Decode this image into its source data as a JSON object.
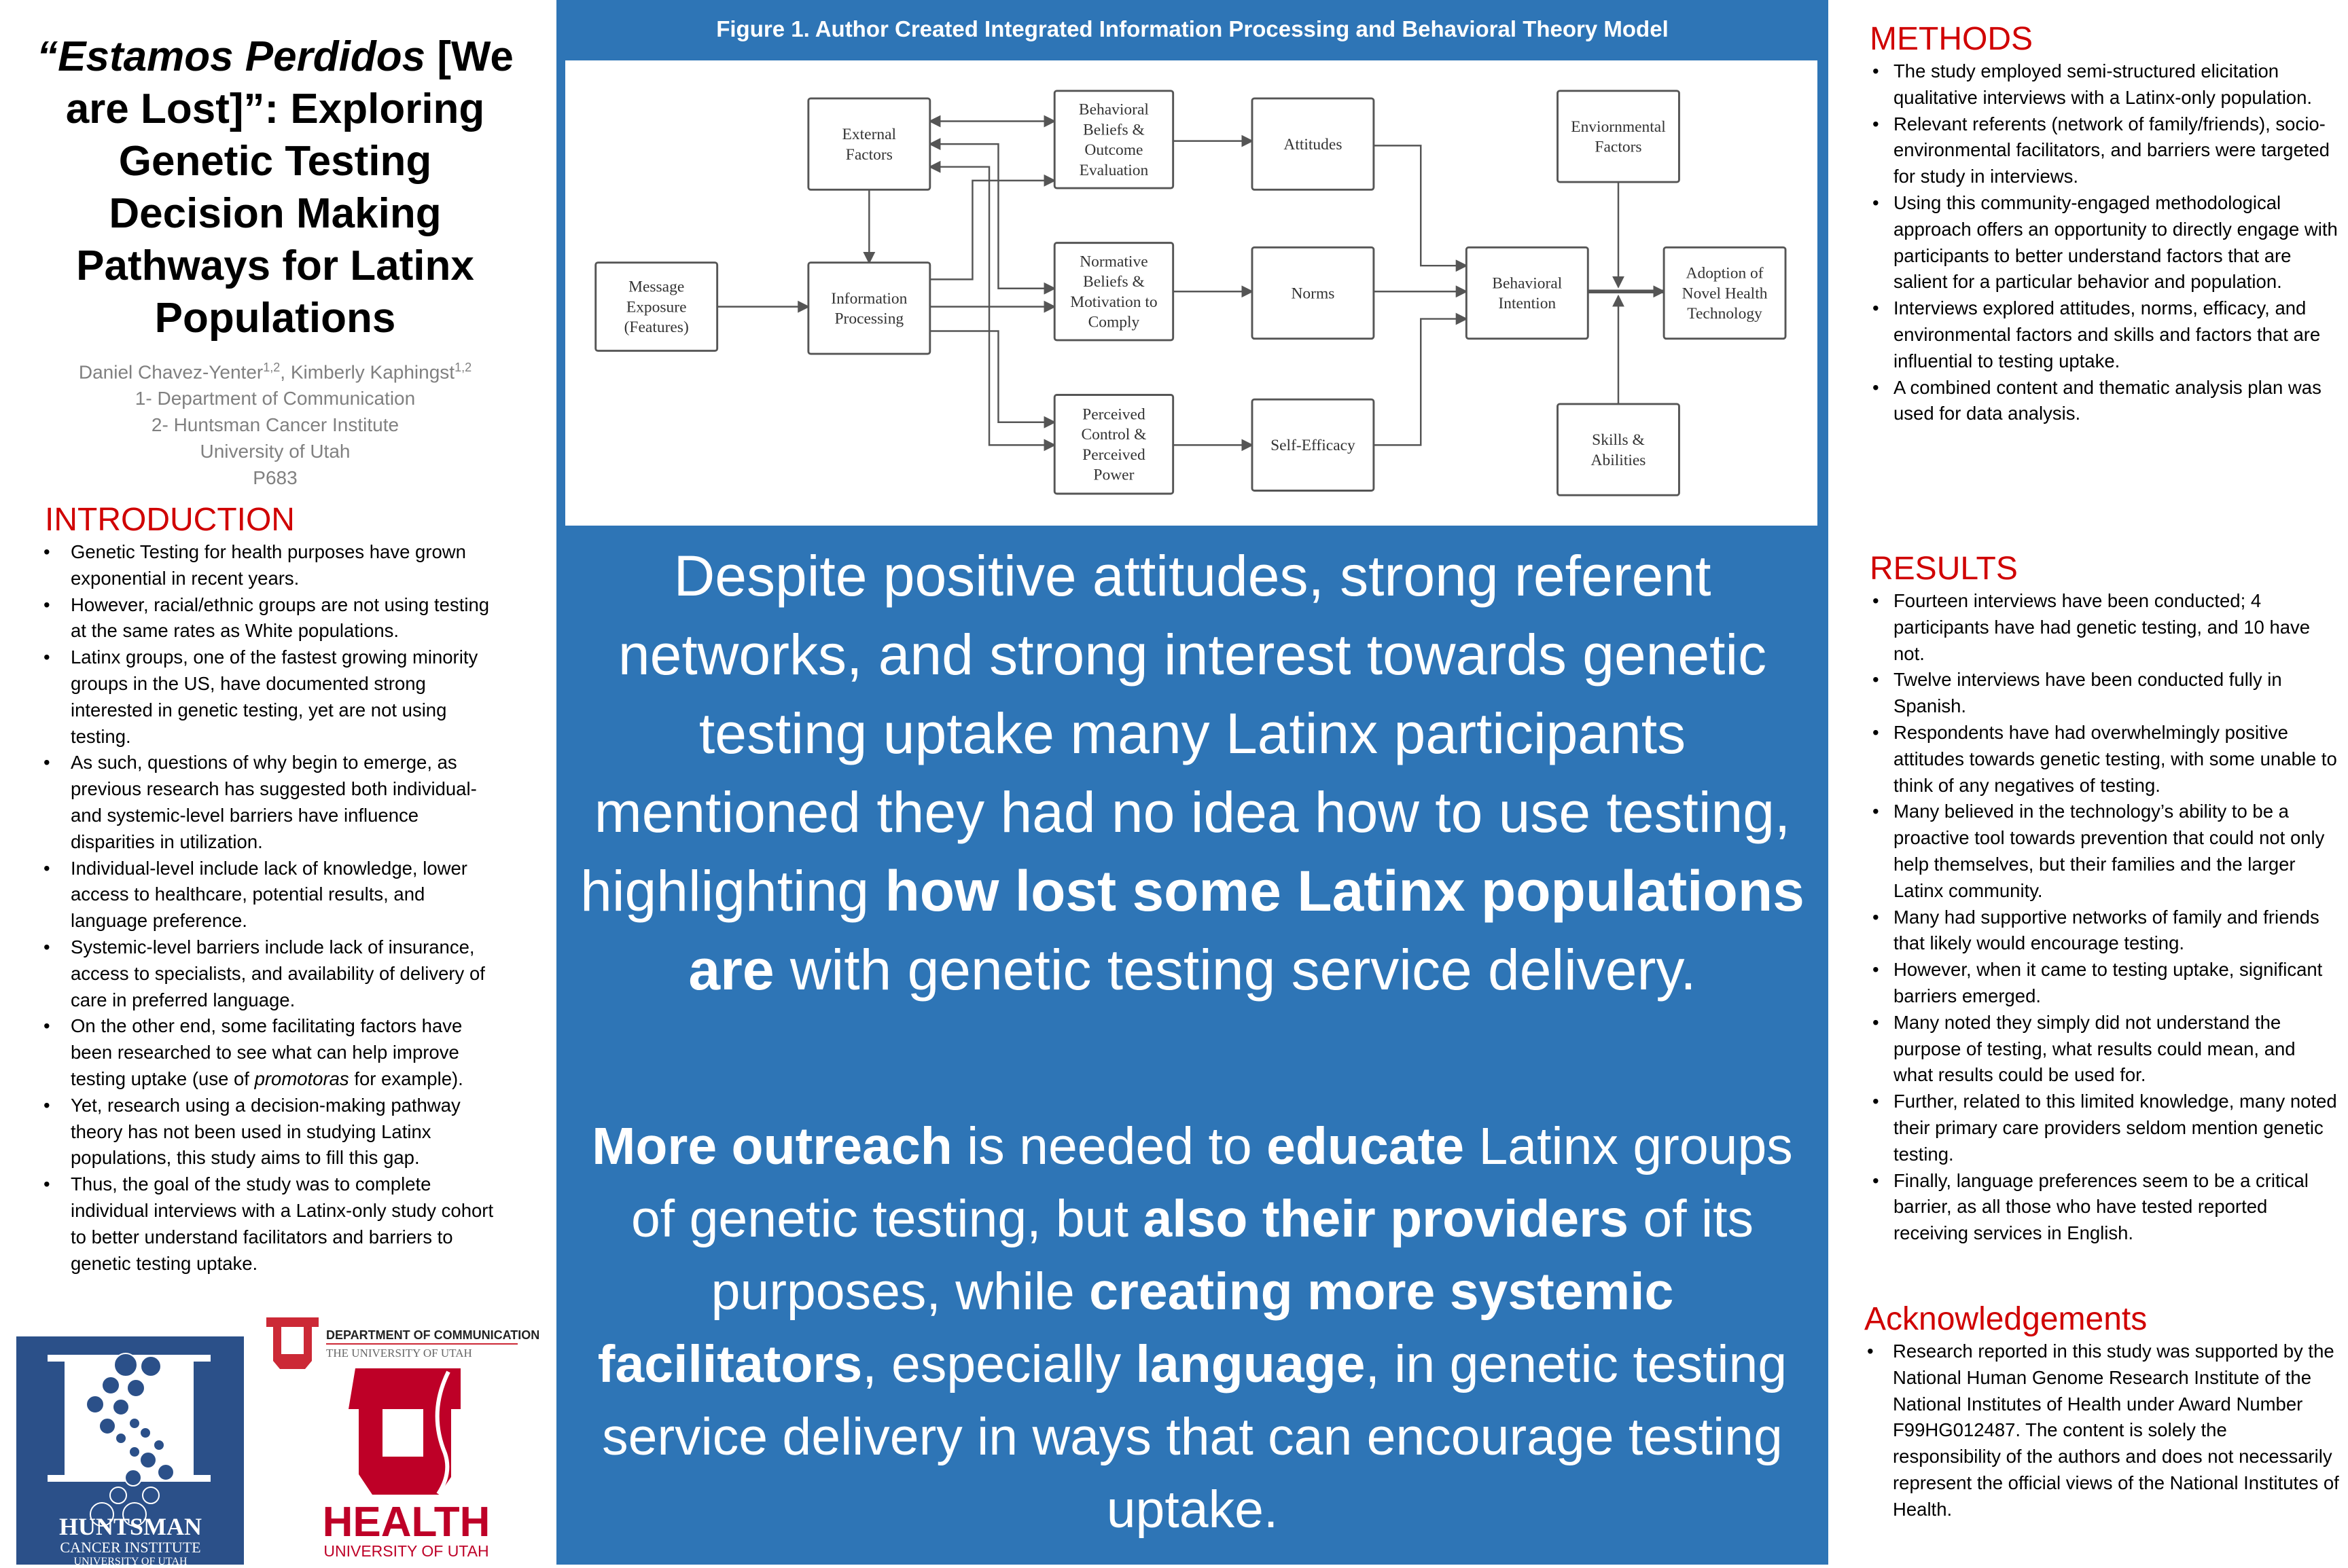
{
  "title": {
    "italic_part": "“Estamos Perdidos",
    "rest": " [We are Lost]”: Exploring Genetic Testing Decision Making Pathways for Latinx Populations"
  },
  "authors": {
    "author1": "Daniel Chavez-Yenter",
    "author1_sup": "1,2",
    "sep": ", ",
    "author2": "Kimberly Kaphingst",
    "author2_sup": "1,2",
    "affil1": "1- Department of Communication",
    "affil2": "2- Huntsman Cancer Institute",
    "university": "University of Utah",
    "poster_id": "P683"
  },
  "introduction": {
    "heading": "INTRODUCTION",
    "bullets": [
      "Genetic Testing for health purposes have grown exponential in recent years.",
      "However, racial/ethnic groups are not using testing at the same rates as White populations.",
      "Latinx groups, one of the fastest growing minority groups in the US, have documented strong interested in genetic testing, yet are not using testing.",
      "As such, questions of why begin to emerge, as previous research has suggested both individual- and systemic-level barriers have influence disparities in utilization.",
      "Individual-level include lack of knowledge, lower access to healthcare, potential results, and language preference.",
      "Systemic-level barriers include lack of insurance, access to specialists, and availability of delivery of care in preferred language."
    ],
    "bullet7": {
      "a": "On the other end, some facilitating factors have been researched to see what can help improve testing uptake (use of ",
      "italic": "promotoras",
      "b": " for example)."
    },
    "bullets_end": [
      "Yet, research using a decision-making pathway theory has not been used in studying Latinx populations, this study aims to fill this gap.",
      "Thus, the goal of the study was to complete individual interviews with a Latinx-only study cohort to better understand facilitators and barriers to genetic testing uptake."
    ]
  },
  "logos": {
    "huntsman": {
      "name": "HUNTSMAN",
      "sub": "CANCER INSTITUTE",
      "uni": "UNIVERSITY OF UTAH",
      "color": "#2b5089"
    },
    "comm": {
      "name": "DEPARTMENT OF COMMUNICATION",
      "uni": "THE UNIVERSITY OF UTAH",
      "color": "#cc2936"
    },
    "health": {
      "name": "HEALTH",
      "uni": "UNIVERSITY OF UTAH",
      "color": "#be0027"
    }
  },
  "figure": {
    "title": "Figure 1. Author Created Integrated Information Processing and Behavioral Theory Model",
    "nodes": {
      "message": [
        "Message",
        "Exposure",
        "(Features)"
      ],
      "external": [
        "External",
        "Factors"
      ],
      "info": [
        "Information",
        "Processing"
      ],
      "beliefs": [
        "Behavioral",
        "Beliefs &",
        "Outcome",
        "Evaluation"
      ],
      "normative": [
        "Normative",
        "Beliefs &",
        "Motivation to",
        "Comply"
      ],
      "perceived": [
        "Perceived",
        "Control &",
        "Perceived",
        "Power"
      ],
      "attitudes": [
        "Attitudes"
      ],
      "norms": [
        "Norms"
      ],
      "efficacy": [
        "Self-Efficacy"
      ],
      "intention": [
        "Behavioral",
        "Intention"
      ],
      "environmental": [
        "Enviornmental",
        "Factors"
      ],
      "skills": [
        "Skills &",
        "Abilities"
      ],
      "adoption": [
        "Adoption of",
        "Novel Health",
        "Technology"
      ]
    }
  },
  "main_message": {
    "p1": [
      {
        "text": "Despite positive attitudes, strong referent networks, and strong interest towards genetic testing uptake many Latinx participants mentioned they had no idea how to use testing, highlighting ",
        "bold": false
      },
      {
        "text": "how lost some Latinx populations are",
        "bold": true
      },
      {
        "text": " with genetic testing service delivery.",
        "bold": false
      }
    ],
    "p2": [
      {
        "text": "More outreach",
        "bold": true
      },
      {
        "text": " is needed to ",
        "bold": false
      },
      {
        "text": "educate",
        "bold": true
      },
      {
        "text": " Latinx groups of genetic testing, but ",
        "bold": false
      },
      {
        "text": "also their providers",
        "bold": true
      },
      {
        "text": " of its purposes, while ",
        "bold": false
      },
      {
        "text": "creating more systemic facilitators",
        "bold": true
      },
      {
        "text": ", especially ",
        "bold": false
      },
      {
        "text": "language",
        "bold": true
      },
      {
        "text": ", in genetic testing service delivery in ways that can encourage testing uptake.",
        "bold": false
      }
    ]
  },
  "methods": {
    "heading": "METHODS",
    "bullets": [
      "The study employed semi-structured elicitation qualitative interviews with a Latinx-only population.",
      "Relevant referents (network of family/friends), socio-environmental facilitators, and barriers were targeted for study in interviews.",
      "Using this community-engaged methodological approach offers an opportunity to directly engage with participants to better understand factors that are salient for a particular behavior and population.",
      "Interviews explored attitudes, norms, efficacy, and environmental factors and skills and factors that are influential to testing uptake.",
      "A combined content and thematic analysis plan was used for data analysis."
    ]
  },
  "results": {
    "heading": "RESULTS",
    "bullets": [
      "Fourteen interviews have been conducted; 4 participants have had genetic testing, and 10 have not.",
      "Twelve interviews have been conducted fully in Spanish.",
      "Respondents have had overwhelmingly positive attitudes towards genetic testing, with some unable to think of any negatives of testing.",
      "Many believed in the technology’s ability to be a proactive tool towards prevention that could not only help themselves, but their families and the larger Latinx community.",
      "Many had supportive networks of family and friends that likely would encourage testing.",
      "However, when it came to testing uptake, significant barriers emerged.",
      "Many noted they simply did not understand the purpose of testing, what results could mean, and what results could be used for.",
      "Further, related to this limited knowledge, many noted their primary care providers seldom mention genetic testing.",
      "Finally, language preferences seem to be a critical barrier, as all those who have tested reported receiving services in English."
    ]
  },
  "acknowledgements": {
    "heading": "Acknowledgements",
    "bullets": [
      "Research reported in this study was supported by the National Human Genome Research Institute of the National Institutes of Health under Award Number F99HG012487. The content is solely the responsibility of the authors and does not necessarily represent the official views of the National Institutes of Health."
    ]
  },
  "colors": {
    "panel_blue": "#2e75b6",
    "heading_red": "#d00000",
    "author_gray": "#808080"
  }
}
